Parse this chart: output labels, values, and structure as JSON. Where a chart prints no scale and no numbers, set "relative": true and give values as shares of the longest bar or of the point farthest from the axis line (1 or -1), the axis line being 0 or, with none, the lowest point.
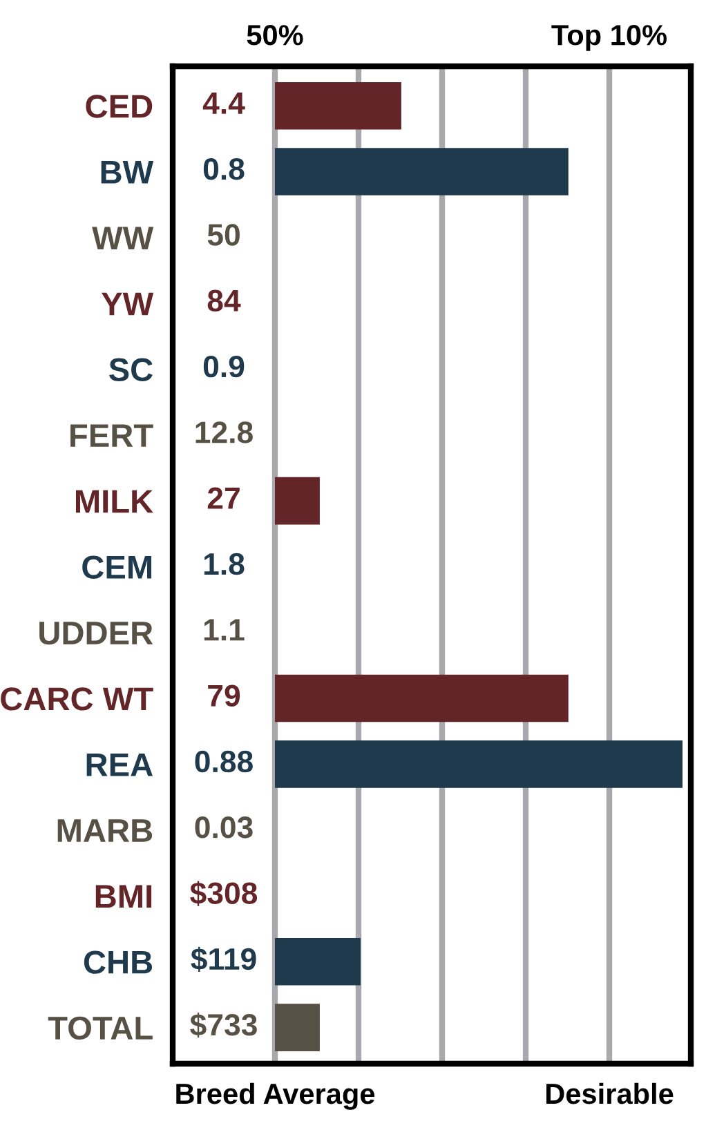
{
  "chart_data": {
    "type": "bar",
    "orientation": "horizontal",
    "relative": true,
    "categories": [
      "CED",
      "BW",
      "WW",
      "YW",
      "SC",
      "FERT",
      "MILK",
      "CEM",
      "UDDER",
      "CARC WT",
      "REA",
      "MARB",
      "BMI",
      "CHB",
      "TOTAL"
    ],
    "values": [
      0.31,
      0.72,
      null,
      null,
      null,
      null,
      0.11,
      null,
      null,
      0.72,
      1,
      null,
      null,
      0.21,
      0.11
    ],
    "colors": [
      "#632528",
      "#1f3a4d",
      "#565045",
      "#632528",
      "#1f3a4d",
      "#565045",
      "#632528",
      "#1f3a4d",
      "#565045",
      "#632528",
      "#1f3a4d",
      "#565045",
      "#632528",
      "#1f3a4d",
      "#565045"
    ],
    "annotations": [
      "50%",
      "Top 10%",
      "4.4",
      "0.8",
      "50",
      "84",
      "0.9",
      "12.8",
      "27",
      "1.8",
      "1.1",
      "79",
      "0.88",
      "0.03",
      "$308",
      "$119",
      "$733",
      "Breed Average",
      "Desirable"
    ],
    "grid": "x"
  }
}
